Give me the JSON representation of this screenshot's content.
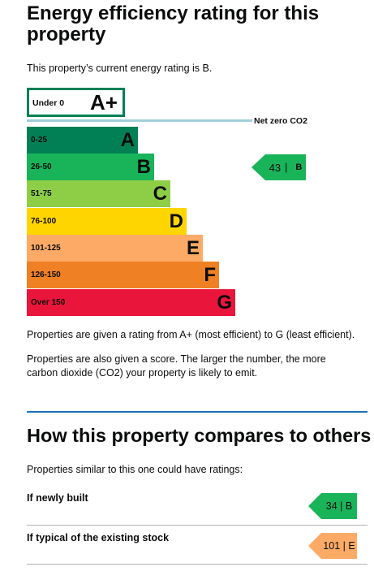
{
  "header": {
    "title": "Energy efficiency rating for this property",
    "current_rating_text": "This property’s current energy rating is B."
  },
  "chart_data": {
    "type": "bar",
    "categories": [
      "A+",
      "A",
      "B",
      "C",
      "D",
      "E",
      "F",
      "G"
    ],
    "ranges": [
      "Under 0",
      "0-25",
      "26-50",
      "51-75",
      "76-100",
      "101-125",
      "126-150",
      "Over 150"
    ],
    "colors": {
      "A+": "#008054",
      "A": "#008054",
      "B": "#19b459",
      "C": "#8dce46",
      "D": "#ffd500",
      "E": "#fcaa65",
      "F": "#ef8023",
      "G": "#e9153b"
    },
    "reference_line_label": "Net zero CO2",
    "current": {
      "score": "43",
      "letter": "B",
      "separator": "|"
    }
  },
  "explanations": {
    "p1": "Properties are given a rating from A+ (most efficient) to G (least efficient).",
    "p2": "Properties are also given a score. The larger the number, the more carbon dioxide (CO2) your property is likely to emit."
  },
  "comparison": {
    "title": "How this property compares to others",
    "intro": "Properties similar to this one could have ratings:",
    "rows": [
      {
        "label": "If newly built",
        "value": "34 | B",
        "color": "#19b459"
      },
      {
        "label": "If typical of the existing stock",
        "value": "101 | E",
        "color": "#fcaa65"
      }
    ]
  }
}
